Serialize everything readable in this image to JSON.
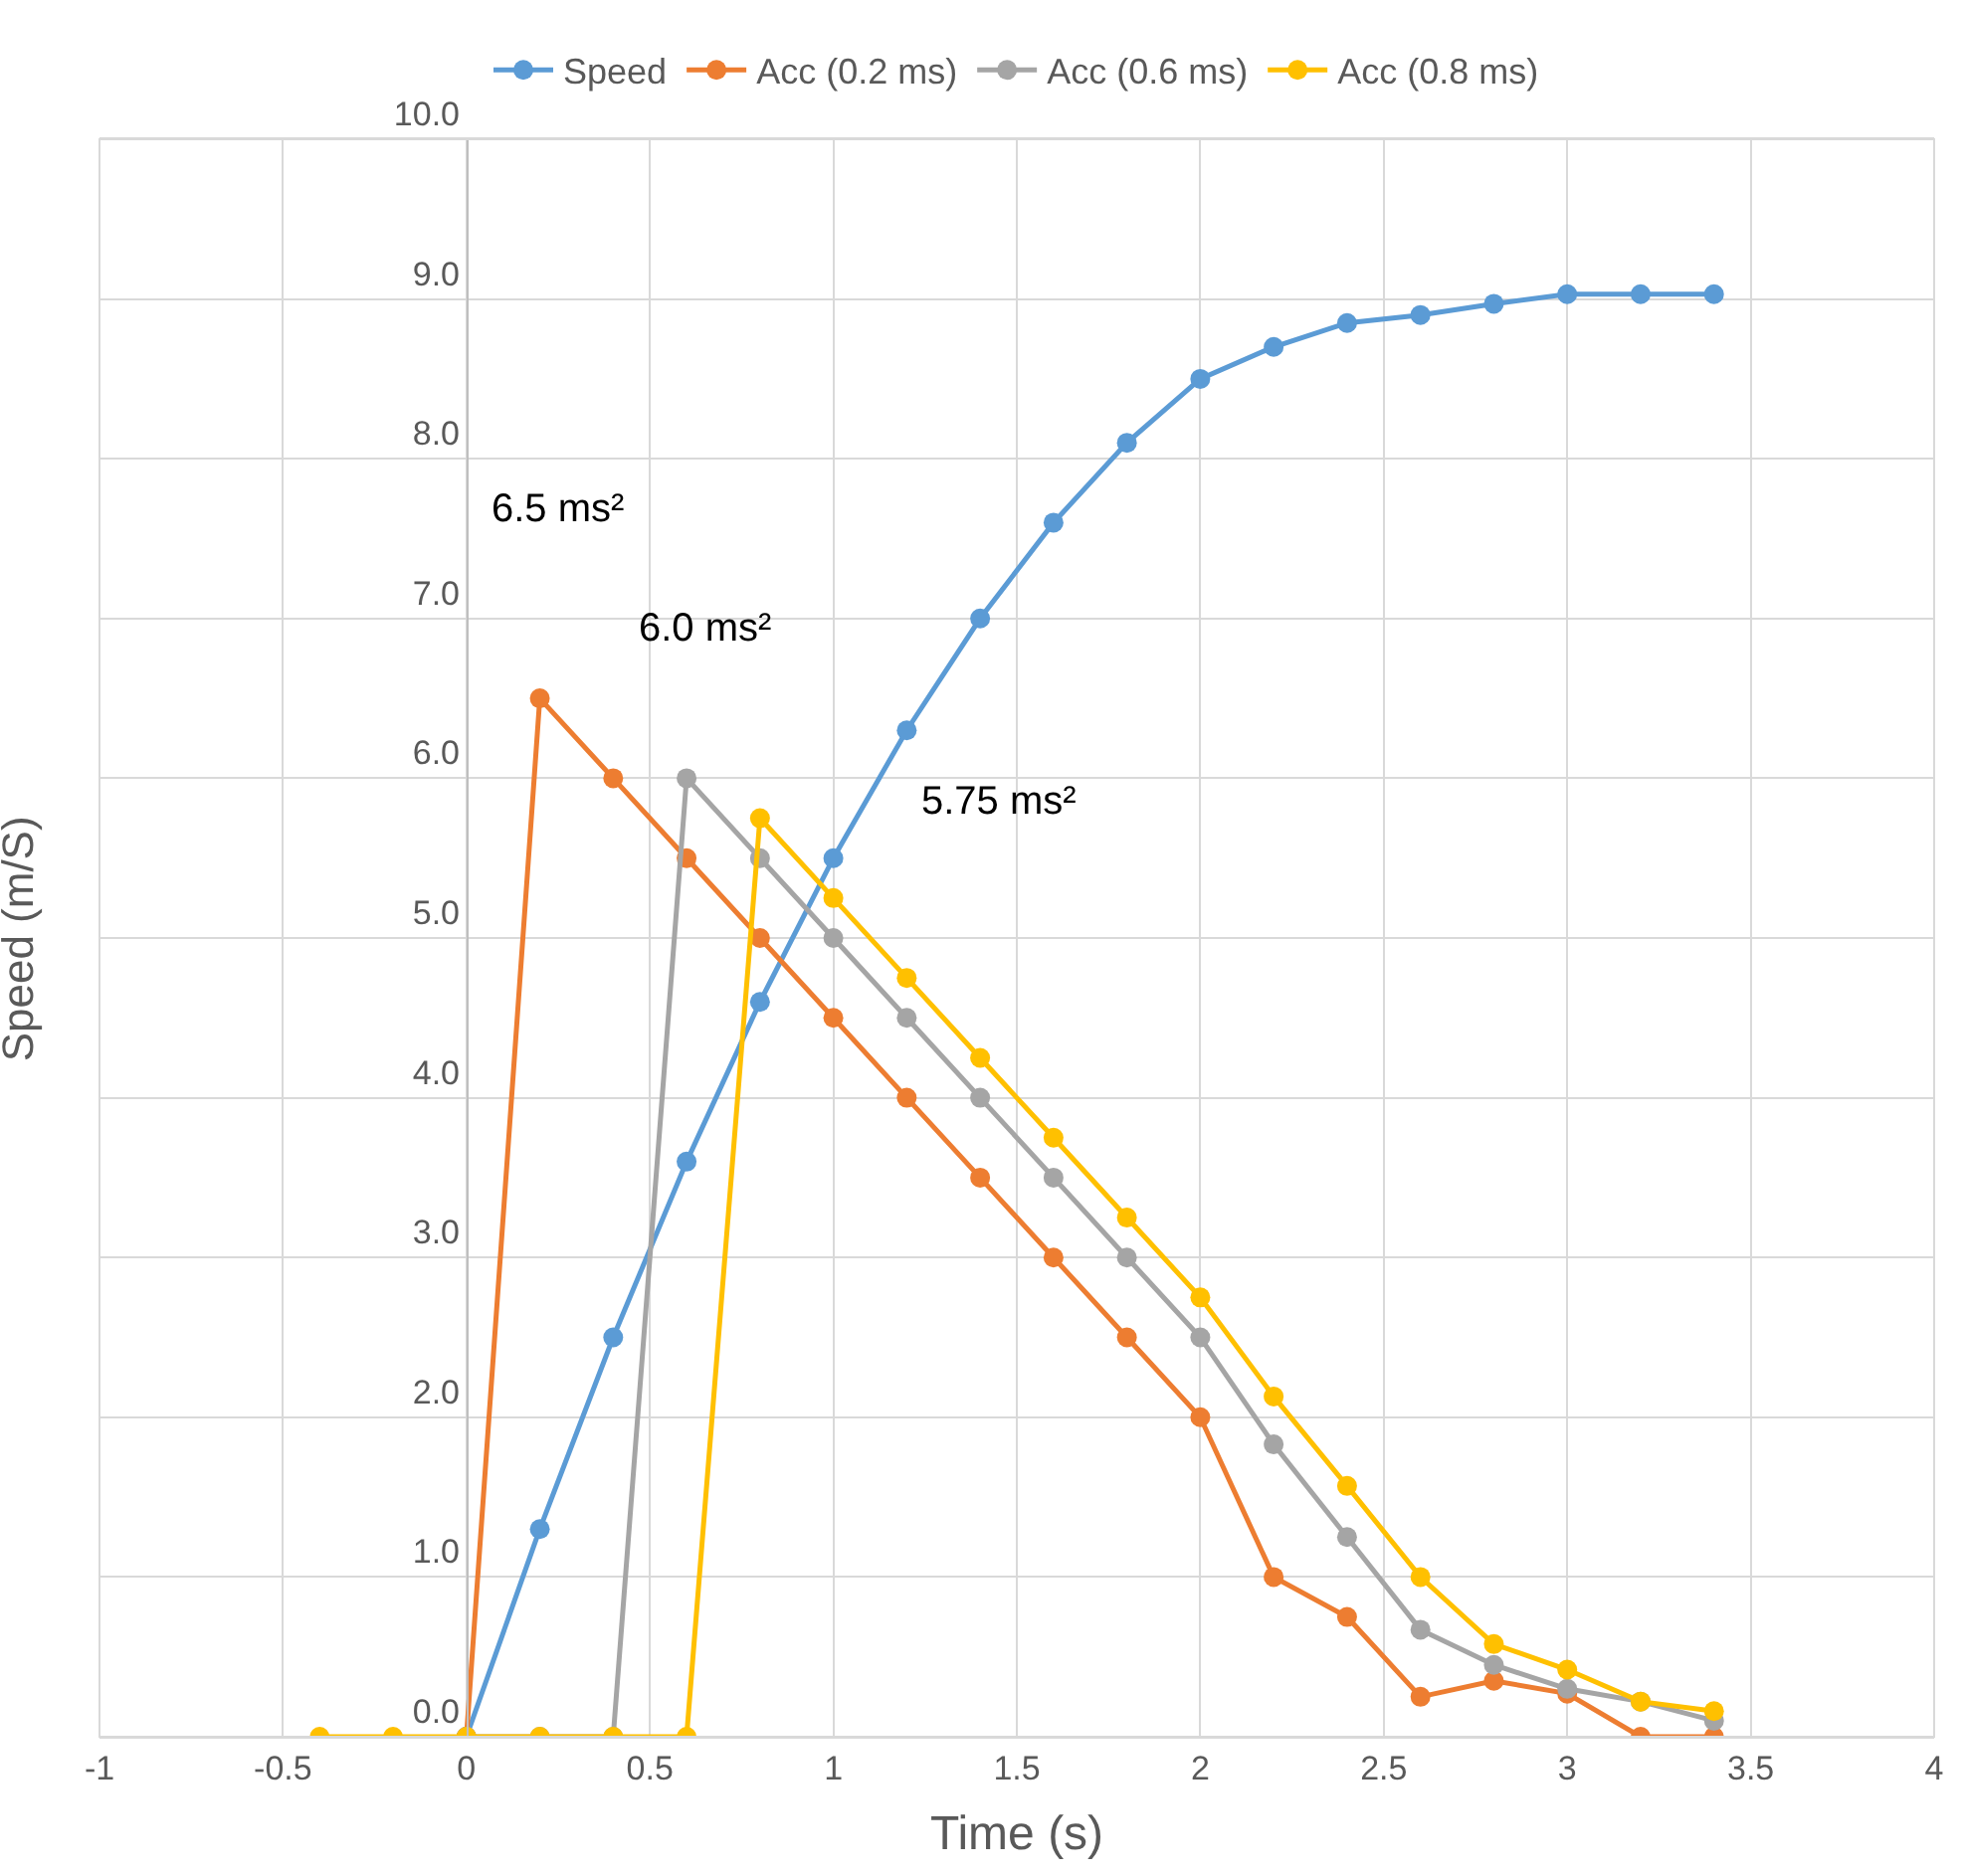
{
  "chart_data": {
    "type": "line",
    "xlabel": "Time (s)",
    "ylabel": "Speed (m/S)",
    "xlim": [
      -1,
      4
    ],
    "xticks": [
      -1,
      -0.5,
      0,
      0.5,
      1,
      1.5,
      2,
      2.5,
      3,
      3.5,
      4
    ],
    "ylim": [
      0,
      10
    ],
    "yticks": [
      {
        "value": 0,
        "label": "0.0"
      },
      {
        "value": 1,
        "label": "1.0"
      },
      {
        "value": 2,
        "label": "2.0"
      },
      {
        "value": 3,
        "label": "3.0"
      },
      {
        "value": 4,
        "label": "4.0"
      },
      {
        "value": 5,
        "label": "5.0"
      },
      {
        "value": 6,
        "label": "6.0"
      },
      {
        "value": 7,
        "label": "7.0"
      },
      {
        "value": 8,
        "label": "8.0"
      },
      {
        "value": 9,
        "label": "9.0"
      },
      {
        "value": 10,
        "label": "10.0"
      }
    ],
    "grid": true,
    "legend": "top",
    "marker": "circle",
    "line_style": "solid",
    "annotations": [
      "6.5 ms²",
      "6.0 ms²",
      "5.75 ms²"
    ],
    "series": [
      {
        "name": "Speed",
        "color": "#5b9bd5",
        "x": [
          0,
          0.2,
          0.4,
          0.6,
          0.8,
          1.0,
          1.2,
          1.4,
          1.6,
          1.8,
          2.0,
          2.2,
          2.4,
          2.6,
          2.8,
          3.0,
          3.2,
          3.4
        ],
        "values": [
          0,
          1.3,
          2.5,
          3.6,
          4.6,
          5.5,
          6.3,
          7.0,
          7.6,
          8.1,
          8.5,
          8.7,
          8.85,
          8.9,
          8.97,
          9.03,
          9.03,
          9.03
        ]
      },
      {
        "name": "Acc (0.2 ms)",
        "color": "#ed7d31",
        "x": [
          0,
          0.2,
          0.4,
          0.6,
          0.8,
          1.0,
          1.2,
          1.4,
          1.6,
          1.8,
          2.0,
          2.2,
          2.4,
          2.6,
          2.8,
          3.0,
          3.2,
          3.4
        ],
        "values": [
          0,
          6.5,
          6.0,
          5.5,
          5.0,
          4.5,
          4.0,
          3.5,
          3.0,
          2.5,
          2.0,
          1.0,
          0.75,
          0.25,
          0.35,
          0.27,
          0,
          0
        ]
      },
      {
        "name": "Acc (0.6 ms)",
        "color": "#a5a5a5",
        "x": [
          0,
          0.2,
          0.4,
          0.6,
          0.8,
          1.0,
          1.2,
          1.4,
          1.6,
          1.8,
          2.0,
          2.2,
          2.4,
          2.6,
          2.8,
          3.0,
          3.2,
          3.4
        ],
        "values": [
          0,
          0,
          0,
          6.0,
          5.5,
          5.0,
          4.5,
          4.0,
          3.5,
          3.0,
          2.5,
          1.83,
          1.25,
          0.67,
          0.45,
          0.3,
          0.22,
          0.1
        ]
      },
      {
        "name": "Acc (0.8 ms)",
        "color": "#ffc000",
        "x": [
          -0.4,
          -0.2,
          0,
          0.2,
          0.4,
          0.6,
          0.8,
          1.0,
          1.2,
          1.4,
          1.6,
          1.8,
          2.0,
          2.2,
          2.4,
          2.6,
          2.8,
          3.0,
          3.2,
          3.4
        ],
        "values": [
          0,
          0,
          0,
          0,
          0,
          0,
          5.75,
          5.25,
          4.75,
          4.25,
          3.75,
          3.25,
          2.75,
          2.13,
          1.57,
          1.0,
          0.58,
          0.42,
          0.22,
          0.16
        ]
      }
    ]
  }
}
